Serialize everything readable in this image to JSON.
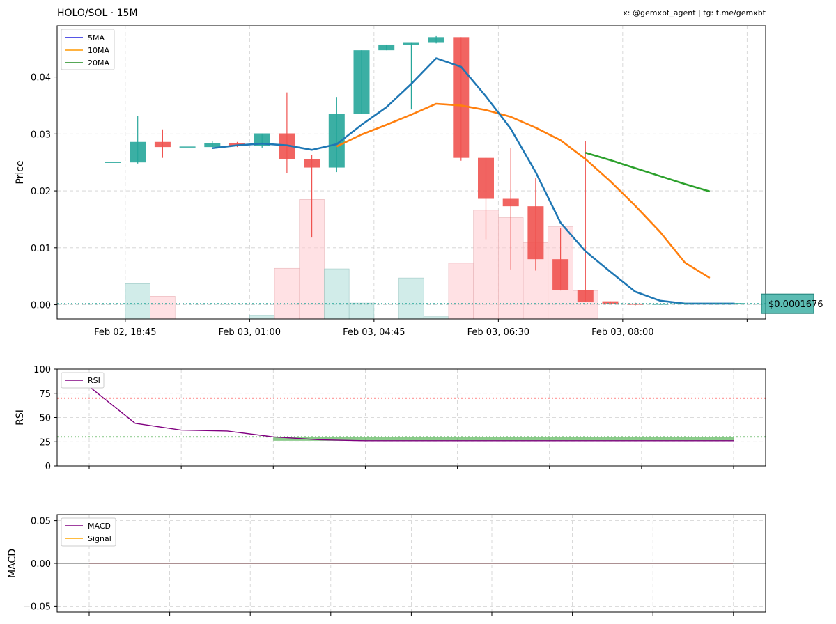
{
  "header": {
    "title": "HOLO/SOL · 15M",
    "credit": "x: @gemxbt_agent | tg: t.me/gemxbt"
  },
  "colors": {
    "up": "#26a69a",
    "down": "#ef5350",
    "vol_up": "#b2dfdb",
    "vol_down": "#ffcdd2",
    "ma5": "#1f77b4",
    "ma10": "#ff7f0e",
    "ma20": "#2ca02c",
    "rsi": "#800080",
    "overbought": "#ff4444",
    "oversold": "#44aa44",
    "signal": "#ffa500",
    "price_tag": "#26a69a"
  },
  "chart_data": [
    {
      "type": "candlestick",
      "ylabel": "Price",
      "ylim": [
        -0.0025,
        0.049
      ],
      "y_ticks": [
        0.0,
        0.01,
        0.02,
        0.03,
        0.04
      ],
      "y_tick_labels": [
        "0.00",
        "0.01",
        "0.02",
        "0.03",
        "0.04"
      ],
      "x_tick_labels": [
        "Feb 02, 18:45",
        "Feb 03, 01:00",
        "Feb 03, 04:45",
        "Feb 03, 06:30",
        "Feb 03, 08:00"
      ],
      "x_tick_index": [
        0.5,
        5.5,
        10.5,
        15.5,
        20.5
      ],
      "legend": [
        "5MA",
        "10MA",
        "20MA"
      ],
      "legend_position": "top-left",
      "grid": true,
      "last_price": 0.0001676,
      "last_price_label": "$0.0001676",
      "candles": [
        {
          "o": 0.025,
          "h": 0.025,
          "l": 0.025,
          "c": 0.025
        },
        {
          "o": 0.025,
          "h": 0.0332,
          "l": 0.0248,
          "c": 0.0286
        },
        {
          "o": 0.0286,
          "h": 0.0308,
          "l": 0.0258,
          "c": 0.0277
        },
        {
          "o": 0.0277,
          "h": 0.0277,
          "l": 0.0277,
          "c": 0.0277
        },
        {
          "o": 0.0277,
          "h": 0.0287,
          "l": 0.0277,
          "c": 0.0284
        },
        {
          "o": 0.0284,
          "h": 0.0286,
          "l": 0.0277,
          "c": 0.0279
        },
        {
          "o": 0.0279,
          "h": 0.0301,
          "l": 0.0276,
          "c": 0.0301
        },
        {
          "o": 0.0301,
          "h": 0.0373,
          "l": 0.0231,
          "c": 0.0256
        },
        {
          "o": 0.0256,
          "h": 0.0263,
          "l": 0.0118,
          "c": 0.0241
        },
        {
          "o": 0.0241,
          "h": 0.0365,
          "l": 0.0233,
          "c": 0.0335
        },
        {
          "o": 0.0335,
          "h": 0.0447,
          "l": 0.0335,
          "c": 0.0447
        },
        {
          "o": 0.0447,
          "h": 0.0457,
          "l": 0.0447,
          "c": 0.0457
        },
        {
          "o": 0.0457,
          "h": 0.046,
          "l": 0.0343,
          "c": 0.046
        },
        {
          "o": 0.046,
          "h": 0.0473,
          "l": 0.0459,
          "c": 0.047
        },
        {
          "o": 0.047,
          "h": 0.047,
          "l": 0.0253,
          "c": 0.0258
        },
        {
          "o": 0.0258,
          "h": 0.0258,
          "l": 0.0115,
          "c": 0.0186
        },
        {
          "o": 0.0186,
          "h": 0.0275,
          "l": 0.0062,
          "c": 0.0173
        },
        {
          "o": 0.0173,
          "h": 0.0223,
          "l": 0.006,
          "c": 0.008
        },
        {
          "o": 0.008,
          "h": 0.0135,
          "l": 0.0025,
          "c": 0.0026
        },
        {
          "o": 0.0026,
          "h": 0.0288,
          "l": 0.0005,
          "c": 0.0005
        },
        {
          "o": 0.0006,
          "h": 0.0006,
          "l": 0.0001,
          "c": 0.0002
        },
        {
          "o": 0.0002,
          "h": 0.0004,
          "l": -0.0002,
          "c": 0.0
        },
        {
          "o": 0.0001,
          "h": 0.0001,
          "l": 0.0001,
          "c": 0.0001
        },
        {
          "o": 0.0002,
          "h": 0.0002,
          "l": 0.0002,
          "c": 0.0002
        },
        {
          "o": 0.0002,
          "h": 0.0002,
          "l": 0.0002,
          "c": 0.0002
        },
        {
          "o": 0.0002,
          "h": 0.0002,
          "l": 0.0002,
          "c": 0.0002
        }
      ],
      "volume": [
        {
          "v": 0.0,
          "up": true
        },
        {
          "v": 0.0062,
          "up": true
        },
        {
          "v": 0.004,
          "up": false
        },
        {
          "v": 0.0,
          "up": true
        },
        {
          "v": 0.0,
          "up": true
        },
        {
          "v": 0.0,
          "up": false
        },
        {
          "v": 0.0006,
          "up": true
        },
        {
          "v": 0.0089,
          "up": false
        },
        {
          "v": 0.021,
          "up": false
        },
        {
          "v": 0.0088,
          "up": true
        },
        {
          "v": 0.0028,
          "up": true
        },
        {
          "v": 0.0,
          "up": true
        },
        {
          "v": 0.0072,
          "up": true
        },
        {
          "v": 0.0004,
          "up": true
        },
        {
          "v": 0.0098,
          "up": false
        },
        {
          "v": 0.0191,
          "up": false
        },
        {
          "v": 0.0178,
          "up": false
        },
        {
          "v": 0.0134,
          "up": false
        },
        {
          "v": 0.0162,
          "up": false
        },
        {
          "v": 0.005,
          "up": false
        },
        {
          "v": 0.0,
          "up": false
        },
        {
          "v": 0.0,
          "up": false
        },
        {
          "v": 0.0,
          "up": true
        },
        {
          "v": 0.0,
          "up": true
        },
        {
          "v": 0.0,
          "up": true
        },
        {
          "v": 0.0,
          "up": true
        }
      ],
      "ma5": [
        {
          "i": 4,
          "v": 0.0275
        },
        {
          "i": 5,
          "v": 0.028
        },
        {
          "i": 6,
          "v": 0.0283
        },
        {
          "i": 7,
          "v": 0.028
        },
        {
          "i": 8,
          "v": 0.0272
        },
        {
          "i": 9,
          "v": 0.0282
        },
        {
          "i": 10,
          "v": 0.0316
        },
        {
          "i": 11,
          "v": 0.0347
        },
        {
          "i": 12,
          "v": 0.0388
        },
        {
          "i": 13,
          "v": 0.0433
        },
        {
          "i": 14,
          "v": 0.0418
        },
        {
          "i": 15,
          "v": 0.0366
        },
        {
          "i": 16,
          "v": 0.0309
        },
        {
          "i": 17,
          "v": 0.0233
        },
        {
          "i": 18,
          "v": 0.0144
        },
        {
          "i": 19,
          "v": 0.0094
        },
        {
          "i": 20,
          "v": 0.0058
        },
        {
          "i": 21,
          "v": 0.0023
        },
        {
          "i": 22,
          "v": 0.0007
        },
        {
          "i": 23,
          "v": 0.0002
        },
        {
          "i": 24,
          "v": 0.0002
        },
        {
          "i": 25,
          "v": 0.0002
        }
      ],
      "ma10": [
        {
          "i": 9,
          "v": 0.0278
        },
        {
          "i": 10,
          "v": 0.0299
        },
        {
          "i": 11,
          "v": 0.0316
        },
        {
          "i": 12,
          "v": 0.0334
        },
        {
          "i": 13,
          "v": 0.0353
        },
        {
          "i": 14,
          "v": 0.035
        },
        {
          "i": 15,
          "v": 0.0342
        },
        {
          "i": 16,
          "v": 0.033
        },
        {
          "i": 17,
          "v": 0.0311
        },
        {
          "i": 18,
          "v": 0.0289
        },
        {
          "i": 19,
          "v": 0.0256
        },
        {
          "i": 20,
          "v": 0.0217
        },
        {
          "i": 21,
          "v": 0.0174
        },
        {
          "i": 22,
          "v": 0.0128
        },
        {
          "i": 23,
          "v": 0.0074
        },
        {
          "i": 24,
          "v": 0.0047
        }
      ],
      "ma20": [
        {
          "i": 19,
          "v": 0.0267
        },
        {
          "i": 20,
          "v": 0.0254
        },
        {
          "i": 21,
          "v": 0.024
        },
        {
          "i": 22,
          "v": 0.0226
        },
        {
          "i": 23,
          "v": 0.0212
        },
        {
          "i": 24,
          "v": 0.0199
        }
      ]
    },
    {
      "type": "line",
      "ylabel": "RSI",
      "ylim": [
        0,
        100
      ],
      "y_ticks": [
        0,
        25,
        50,
        75,
        100
      ],
      "y_tick_labels": [
        "0",
        "25",
        "50",
        "75",
        "100"
      ],
      "legend": [
        "RSI"
      ],
      "legend_position": "top-left",
      "grid": true,
      "overbought": 70,
      "oversold": 30,
      "x": [
        0,
        1,
        2,
        3,
        4,
        5,
        6,
        7,
        8,
        9,
        10,
        11,
        12,
        13,
        14
      ],
      "rsi": [
        82,
        44,
        37,
        36,
        30,
        27,
        26,
        26,
        26,
        26,
        26,
        26,
        26,
        26,
        26
      ],
      "fill_below_30": true
    },
    {
      "type": "line",
      "ylabel": "MACD",
      "ylim": [
        -0.057,
        0.057
      ],
      "y_ticks": [
        -0.05,
        0.0,
        0.05
      ],
      "y_tick_labels": [
        "−0.05",
        "0.00",
        "0.05"
      ],
      "legend": [
        "MACD",
        "Signal"
      ],
      "legend_position": "top-left",
      "grid": true,
      "macd": [
        0,
        0,
        0,
        0,
        0,
        0,
        0,
        0,
        0,
        0,
        0,
        0,
        0,
        0,
        0
      ],
      "signal": [
        0,
        0,
        0,
        0,
        0,
        0,
        0,
        0,
        0,
        0,
        0,
        0,
        0,
        0,
        0
      ]
    }
  ]
}
